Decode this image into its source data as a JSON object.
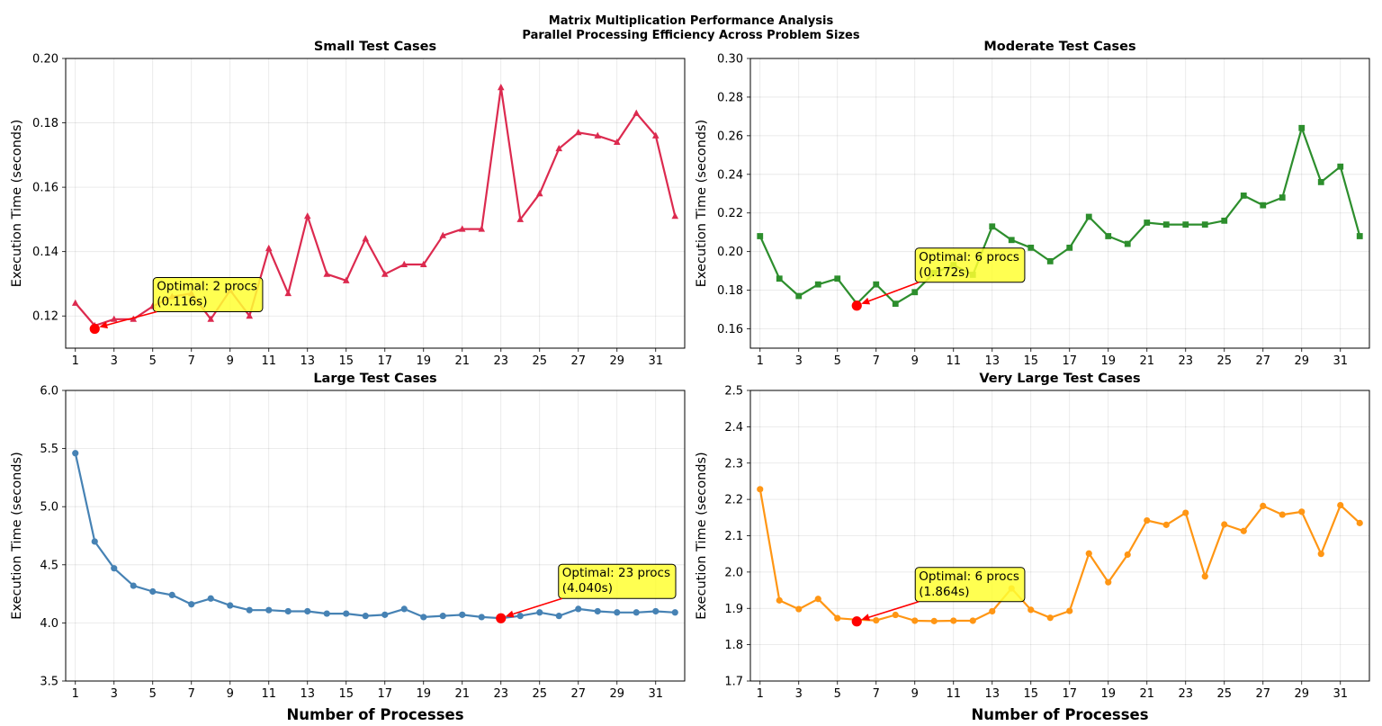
{
  "figure": {
    "title_line1": "Matrix Multiplication Performance Analysis",
    "title_line2": "Parallel Processing Efficiency Across Problem Sizes"
  },
  "chart_data": [
    {
      "type": "line",
      "title": "Small Test Cases",
      "ylabel": "Execution Time (seconds)",
      "xlabel": "",
      "xlim": [
        0.5,
        32.5
      ],
      "ylim": [
        0.11,
        0.2
      ],
      "yticks": [
        0.12,
        0.14,
        0.16,
        0.18,
        0.2
      ],
      "ytick_labels": [
        "0.12",
        "0.14",
        "0.16",
        "0.18",
        "0.20"
      ],
      "xticks": [
        1,
        3,
        5,
        7,
        9,
        11,
        13,
        15,
        17,
        19,
        21,
        23,
        25,
        27,
        29,
        31
      ],
      "xtick_labels": [
        "1",
        "3",
        "5",
        "7",
        "9",
        "11",
        "13",
        "15",
        "17",
        "19",
        "21",
        "23",
        "25",
        "27",
        "29",
        "31"
      ],
      "grid": true,
      "color": "#dc2a4f",
      "marker": "triangle",
      "x": [
        1,
        2,
        3,
        4,
        5,
        6,
        7,
        8,
        9,
        10,
        11,
        12,
        13,
        14,
        15,
        16,
        17,
        18,
        19,
        20,
        21,
        22,
        23,
        24,
        25,
        26,
        27,
        28,
        29,
        30,
        31,
        32
      ],
      "y": [
        0.124,
        0.117,
        0.119,
        0.119,
        0.123,
        0.126,
        0.127,
        0.119,
        0.128,
        0.12,
        0.141,
        0.127,
        0.151,
        0.133,
        0.131,
        0.144,
        0.133,
        0.136,
        0.136,
        0.145,
        0.147,
        0.147,
        0.191,
        0.15,
        0.158,
        0.172,
        0.177,
        0.176,
        0.174,
        0.183,
        0.176,
        0.151
      ],
      "optimal": {
        "x": 2,
        "y": 0.116
      },
      "annotation": {
        "line1": "Optimal: 2 procs",
        "line2": "(0.116s)"
      }
    },
    {
      "type": "line",
      "title": "Moderate Test Cases",
      "ylabel": "Execution Time (seconds)",
      "xlabel": "",
      "xlim": [
        0.5,
        32.5
      ],
      "ylim": [
        0.15,
        0.3
      ],
      "yticks": [
        0.16,
        0.18,
        0.2,
        0.22,
        0.24,
        0.26,
        0.28,
        0.3
      ],
      "ytick_labels": [
        "0.16",
        "0.18",
        "0.20",
        "0.22",
        "0.24",
        "0.26",
        "0.28",
        "0.30"
      ],
      "xticks": [
        1,
        3,
        5,
        7,
        9,
        11,
        13,
        15,
        17,
        19,
        21,
        23,
        25,
        27,
        29,
        31
      ],
      "xtick_labels": [
        "1",
        "3",
        "5",
        "7",
        "9",
        "11",
        "13",
        "15",
        "17",
        "19",
        "21",
        "23",
        "25",
        "27",
        "29",
        "31"
      ],
      "grid": true,
      "color": "#2d8e2d",
      "marker": "square",
      "x": [
        1,
        2,
        3,
        4,
        5,
        6,
        7,
        8,
        9,
        10,
        11,
        12,
        13,
        14,
        15,
        16,
        17,
        18,
        19,
        20,
        21,
        22,
        23,
        24,
        25,
        26,
        27,
        28,
        29,
        30,
        31,
        32
      ],
      "y": [
        0.208,
        0.186,
        0.177,
        0.183,
        0.186,
        0.173,
        0.183,
        0.173,
        0.179,
        0.189,
        0.193,
        0.188,
        0.213,
        0.206,
        0.202,
        0.195,
        0.202,
        0.218,
        0.208,
        0.204,
        0.215,
        0.214,
        0.214,
        0.214,
        0.216,
        0.229,
        0.224,
        0.228,
        0.264,
        0.236,
        0.244,
        0.208
      ],
      "optimal": {
        "x": 6,
        "y": 0.172
      },
      "annotation": {
        "line1": "Optimal: 6 procs",
        "line2": "(0.172s)"
      }
    },
    {
      "type": "line",
      "title": "Large Test Cases",
      "ylabel": "Execution Time (seconds)",
      "xlabel": "Number of Processes",
      "xlim": [
        0.5,
        32.5
      ],
      "ylim": [
        3.5,
        6.0
      ],
      "yticks": [
        3.5,
        4.0,
        4.5,
        5.0,
        5.5,
        6.0
      ],
      "ytick_labels": [
        "3.5",
        "4.0",
        "4.5",
        "5.0",
        "5.5",
        "6.0"
      ],
      "xticks": [
        1,
        3,
        5,
        7,
        9,
        11,
        13,
        15,
        17,
        19,
        21,
        23,
        25,
        27,
        29,
        31
      ],
      "xtick_labels": [
        "1",
        "3",
        "5",
        "7",
        "9",
        "11",
        "13",
        "15",
        "17",
        "19",
        "21",
        "23",
        "25",
        "27",
        "29",
        "31"
      ],
      "grid": true,
      "color": "#4682b4",
      "marker": "circle",
      "x": [
        1,
        2,
        3,
        4,
        5,
        6,
        7,
        8,
        9,
        10,
        11,
        12,
        13,
        14,
        15,
        16,
        17,
        18,
        19,
        20,
        21,
        22,
        23,
        24,
        25,
        26,
        27,
        28,
        29,
        30,
        31,
        32
      ],
      "y": [
        5.46,
        4.7,
        4.47,
        4.32,
        4.27,
        4.24,
        4.16,
        4.21,
        4.15,
        4.11,
        4.11,
        4.1,
        4.1,
        4.08,
        4.08,
        4.06,
        4.07,
        4.12,
        4.05,
        4.06,
        4.07,
        4.05,
        4.04,
        4.06,
        4.09,
        4.06,
        4.12,
        4.1,
        4.09,
        4.09,
        4.1,
        4.09
      ],
      "optimal": {
        "x": 23,
        "y": 4.04
      },
      "annotation": {
        "line1": "Optimal: 23 procs",
        "line2": "(4.040s)"
      }
    },
    {
      "type": "line",
      "title": "Very Large Test Cases",
      "ylabel": "Execution Time (seconds)",
      "xlabel": "Number of Processes",
      "xlim": [
        0.5,
        32.5
      ],
      "ylim": [
        1.7,
        2.5
      ],
      "yticks": [
        1.7,
        1.8,
        1.9,
        2.0,
        2.1,
        2.2,
        2.3,
        2.4,
        2.5
      ],
      "ytick_labels": [
        "1.7",
        "1.8",
        "1.9",
        "2.0",
        "2.1",
        "2.2",
        "2.3",
        "2.4",
        "2.5"
      ],
      "xticks": [
        1,
        3,
        5,
        7,
        9,
        11,
        13,
        15,
        17,
        19,
        21,
        23,
        25,
        27,
        29,
        31
      ],
      "xtick_labels": [
        "1",
        "3",
        "5",
        "7",
        "9",
        "11",
        "13",
        "15",
        "17",
        "19",
        "21",
        "23",
        "25",
        "27",
        "29",
        "31"
      ],
      "grid": true,
      "color": "#ff9614",
      "marker": "circle",
      "x": [
        1,
        2,
        3,
        4,
        5,
        6,
        7,
        8,
        9,
        10,
        11,
        12,
        13,
        14,
        15,
        16,
        17,
        18,
        19,
        20,
        21,
        22,
        23,
        24,
        25,
        26,
        27,
        28,
        29,
        30,
        31,
        32
      ],
      "y": [
        2.228,
        1.922,
        1.898,
        1.926,
        1.873,
        1.869,
        1.867,
        1.882,
        1.866,
        1.865,
        1.866,
        1.866,
        1.892,
        1.955,
        1.896,
        1.874,
        1.893,
        2.051,
        1.972,
        2.048,
        2.142,
        2.13,
        2.163,
        1.988,
        2.131,
        2.113,
        2.182,
        2.158,
        2.166,
        2.05,
        2.184,
        2.135
      ],
      "optimal": {
        "x": 6,
        "y": 1.864
      },
      "annotation": {
        "line1": "Optimal: 6 procs",
        "line2": "(1.864s)"
      }
    }
  ],
  "colors": {
    "optimal_marker": "#ff0000",
    "arrow": "#ff0000",
    "annotation_box": "#ffff33"
  }
}
